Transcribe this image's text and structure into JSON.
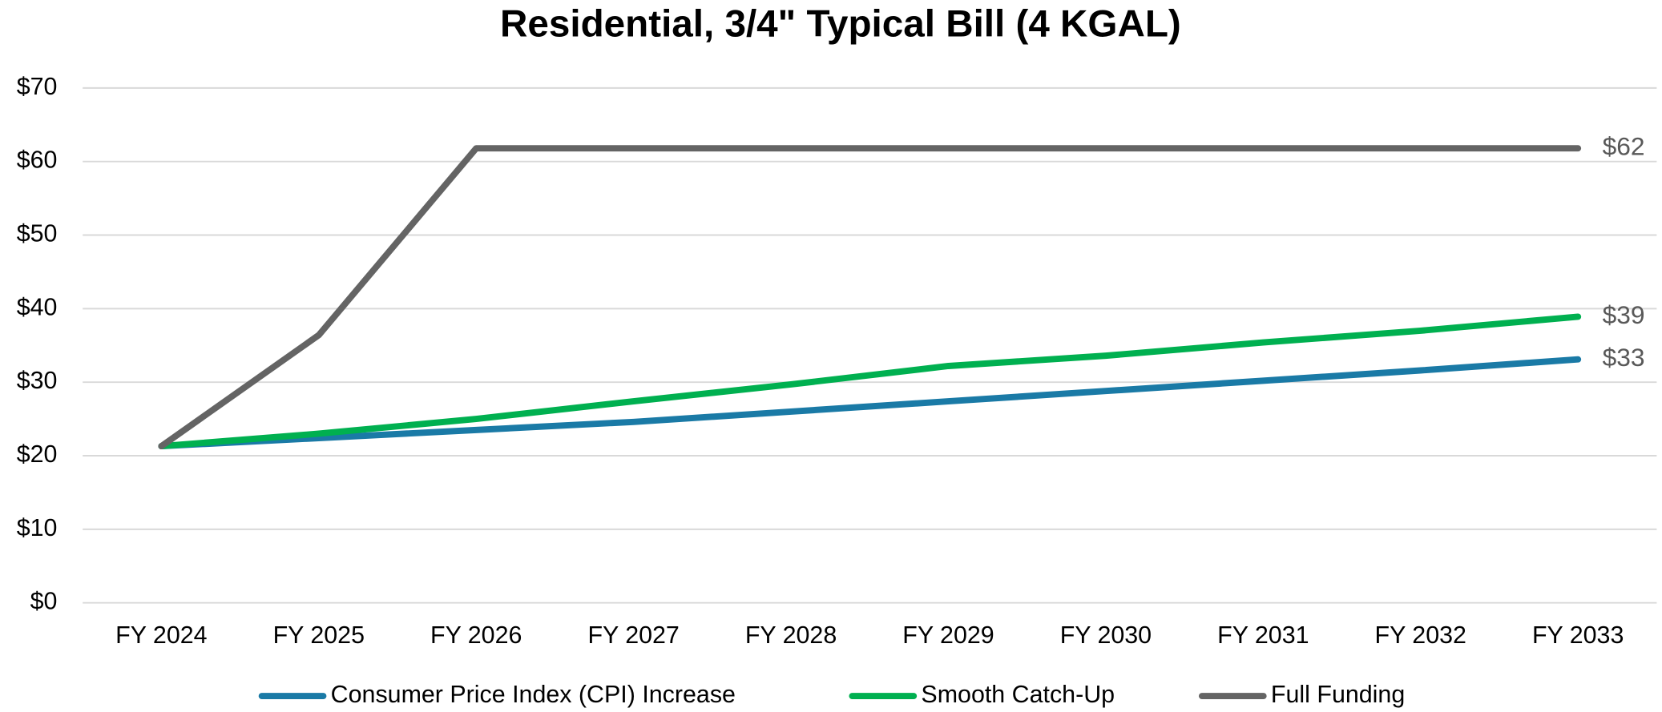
{
  "chart_data": {
    "type": "line",
    "title": "Residential, 3/4\" Typical Bill (4 KGAL)",
    "categories": [
      "FY 2024",
      "FY 2025",
      "FY 2026",
      "FY 2027",
      "FY 2028",
      "FY 2029",
      "FY 2030",
      "FY 2031",
      "FY 2032",
      "FY 2033"
    ],
    "series": [
      {
        "name": "Consumer Price Index (CPI) Increase",
        "color": "#1a7aa6",
        "values": [
          21.3,
          22.4,
          23.5,
          24.6,
          26.0,
          27.4,
          28.8,
          30.2,
          31.6,
          33.1
        ],
        "value_labels": [
          null,
          null,
          null,
          null,
          null,
          null,
          null,
          null,
          null,
          "$33"
        ]
      },
      {
        "name": "Smooth Catch-Up",
        "color": "#00b050",
        "values": [
          21.3,
          23.0,
          25.0,
          27.4,
          29.7,
          32.2,
          33.6,
          35.4,
          37.0,
          38.9
        ],
        "value_labels": [
          null,
          null,
          null,
          null,
          null,
          null,
          null,
          null,
          null,
          "$39"
        ]
      },
      {
        "name": "Full Funding",
        "color": "#646464",
        "values": [
          21.3,
          36.4,
          61.8,
          61.8,
          61.8,
          61.8,
          61.8,
          61.8,
          61.8,
          61.8
        ],
        "value_labels": [
          null,
          null,
          null,
          null,
          null,
          null,
          null,
          null,
          null,
          "$62"
        ]
      }
    ],
    "ylim": [
      0,
      70
    ],
    "yticks": [
      {
        "value": 0,
        "label": "$0"
      },
      {
        "value": 10,
        "label": "$10"
      },
      {
        "value": 20,
        "label": "$20"
      },
      {
        "value": 30,
        "label": "$30"
      },
      {
        "value": 40,
        "label": "$40"
      },
      {
        "value": 50,
        "label": "$50"
      },
      {
        "value": 60,
        "label": "$60"
      },
      {
        "value": 70,
        "label": "$70"
      }
    ],
    "grid": true,
    "legend": "bottom"
  }
}
